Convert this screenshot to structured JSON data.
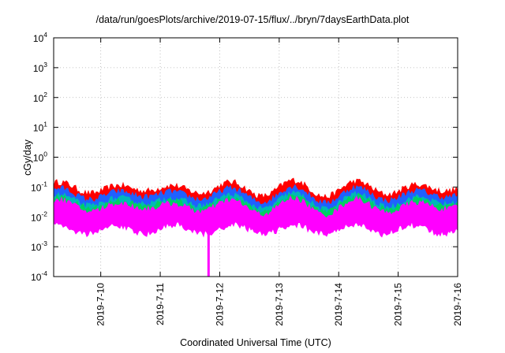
{
  "chart_data": {
    "type": "area",
    "title": "/data/run/goesPlots/archive/2019-07-15/flux/../bryn/7daysEarthData.plot",
    "xlabel": "Coordinated Universal Time (UTC)",
    "ylabel": "cGy/day",
    "xlim": [
      "2019-07-09T05:00",
      "2019-07-16T00:00"
    ],
    "x_ticks": [
      "2019-7-10",
      "2019-7-11",
      "2019-7-12",
      "2019-7-13",
      "2019-7-14",
      "2019-7-15",
      "2019-7-16"
    ],
    "yscale": "log",
    "ylim": [
      0.0001,
      10000
    ],
    "y_ticks": [
      {
        "base": "10",
        "exp": "-4"
      },
      {
        "base": "10",
        "exp": "-3"
      },
      {
        "base": "10",
        "exp": "-2"
      },
      {
        "base": "10",
        "exp": "-1"
      },
      {
        "base": "10",
        "exp": "0"
      },
      {
        "base": "10",
        "exp": "1"
      },
      {
        "base": "10",
        "exp": "2"
      },
      {
        "base": "10",
        "exp": "3"
      },
      {
        "base": "10",
        "exp": "4"
      }
    ],
    "grid": true,
    "series": [
      {
        "color": "#ff0000",
        "typical": 0.04,
        "upper": 0.08,
        "lower": 0.02
      },
      {
        "color": "#2060ff",
        "typical": 0.03,
        "upper": 0.05,
        "lower": 0.015
      },
      {
        "color": "#00b8b8",
        "typical": 0.02,
        "upper": 0.03,
        "lower": 0.01
      },
      {
        "color": "#00d060",
        "typical": 0.015,
        "upper": 0.025,
        "lower": 0.008
      },
      {
        "color": "#ff00ff",
        "typical": 0.008,
        "upper": 0.02,
        "lower": 0.004
      }
    ],
    "dropout": {
      "x": "2019-07-11T19:30",
      "y": 0.0001
    }
  }
}
